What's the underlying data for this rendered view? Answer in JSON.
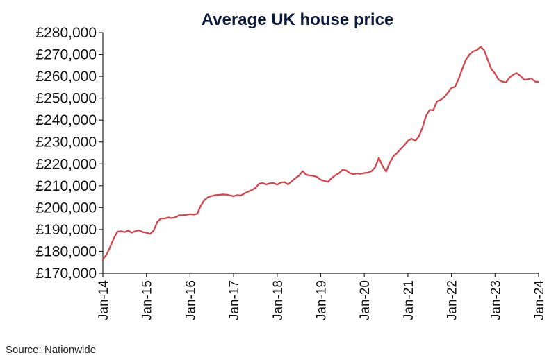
{
  "source": "Source: Nationwide",
  "colors": {
    "line": "#d9434b",
    "axis": "#222222",
    "title": "#0b1a3d"
  },
  "chart_data": {
    "type": "line",
    "title": "Average UK house price",
    "xlabel": "",
    "ylabel": "",
    "grid": false,
    "ylim": [
      170000,
      280000
    ],
    "xlim": [
      "2014-01",
      "2024-01"
    ],
    "yticks": [
      "£170,000",
      "£180,000",
      "£190,000",
      "£200,000",
      "£210,000",
      "£220,000",
      "£230,000",
      "£240,000",
      "£250,000",
      "£260,000",
      "£270,000",
      "£280,000"
    ],
    "xticks": [
      "Jan-14",
      "Jan-15",
      "Jan-16",
      "Jan-17",
      "Jan-18",
      "Jan-19",
      "Jan-20",
      "Jan-21",
      "Jan-22",
      "Jan-23",
      "Jan-24"
    ],
    "series": [
      {
        "x": [
          "2014-01",
          "2014-02",
          "2014-03",
          "2014-04",
          "2014-05",
          "2014-06",
          "2014-07",
          "2014-08",
          "2014-09",
          "2014-10",
          "2014-11",
          "2014-12",
          "2015-01",
          "2015-02",
          "2015-03",
          "2015-04",
          "2015-05",
          "2015-06",
          "2015-07",
          "2015-08",
          "2015-09",
          "2015-10",
          "2015-11",
          "2015-12",
          "2016-01",
          "2016-02",
          "2016-03",
          "2016-04",
          "2016-05",
          "2016-06",
          "2016-07",
          "2016-08",
          "2016-09",
          "2016-10",
          "2016-11",
          "2016-12",
          "2017-01",
          "2017-02",
          "2017-03",
          "2017-04",
          "2017-05",
          "2017-06",
          "2017-07",
          "2017-08",
          "2017-09",
          "2017-10",
          "2017-11",
          "2017-12",
          "2018-01",
          "2018-02",
          "2018-03",
          "2018-04",
          "2018-05",
          "2018-06",
          "2018-07",
          "2018-08",
          "2018-09",
          "2018-10",
          "2018-11",
          "2018-12",
          "2019-01",
          "2019-02",
          "2019-03",
          "2019-04",
          "2019-05",
          "2019-06",
          "2019-07",
          "2019-08",
          "2019-09",
          "2019-10",
          "2019-11",
          "2019-12",
          "2020-01",
          "2020-02",
          "2020-03",
          "2020-04",
          "2020-05",
          "2020-06",
          "2020-07",
          "2020-08",
          "2020-09",
          "2020-10",
          "2020-11",
          "2020-12",
          "2021-01",
          "2021-02",
          "2021-03",
          "2021-04",
          "2021-05",
          "2021-06",
          "2021-07",
          "2021-08",
          "2021-09",
          "2021-10",
          "2021-11",
          "2021-12",
          "2022-01",
          "2022-02",
          "2022-03",
          "2022-04",
          "2022-05",
          "2022-06",
          "2022-07",
          "2022-08",
          "2022-09",
          "2022-10",
          "2022-11",
          "2022-12",
          "2023-01",
          "2023-02",
          "2023-03",
          "2023-04",
          "2023-05",
          "2023-06",
          "2023-07",
          "2023-08",
          "2023-09",
          "2023-10",
          "2023-11",
          "2023-12",
          "2024-01"
        ],
        "values": [
          176400,
          178500,
          182000,
          186000,
          189000,
          189200,
          188800,
          189500,
          188500,
          189300,
          189600,
          188800,
          188500,
          188000,
          189500,
          193500,
          195000,
          195000,
          195500,
          195200,
          195600,
          196500,
          196500,
          196700,
          197000,
          196800,
          197200,
          201000,
          203500,
          204800,
          205300,
          205700,
          205800,
          206000,
          205900,
          205600,
          205200,
          205700,
          205500,
          206500,
          207300,
          208000,
          209000,
          210900,
          211200,
          210600,
          211100,
          211200,
          210500,
          211400,
          211700,
          210600,
          212000,
          213500,
          214600,
          216700,
          215000,
          214700,
          214500,
          214000,
          212700,
          212200,
          211800,
          213500,
          214800,
          215700,
          217300,
          217000,
          215800,
          215300,
          215600,
          215400,
          215800,
          216000,
          216700,
          218500,
          222800,
          219000,
          216500,
          220500,
          223500,
          225000,
          226800,
          228500,
          230500,
          231500,
          230500,
          232500,
          236500,
          242000,
          244700,
          244500,
          248600,
          249200,
          250500,
          252500,
          254700,
          255300,
          259000,
          263500,
          267700,
          270000,
          271500,
          272000,
          273500,
          272000,
          267500,
          263300,
          261300,
          258400,
          257600,
          257200,
          259500,
          260800,
          261500,
          260200,
          258500,
          258600,
          259100,
          257600,
          257500
        ]
      }
    ]
  }
}
